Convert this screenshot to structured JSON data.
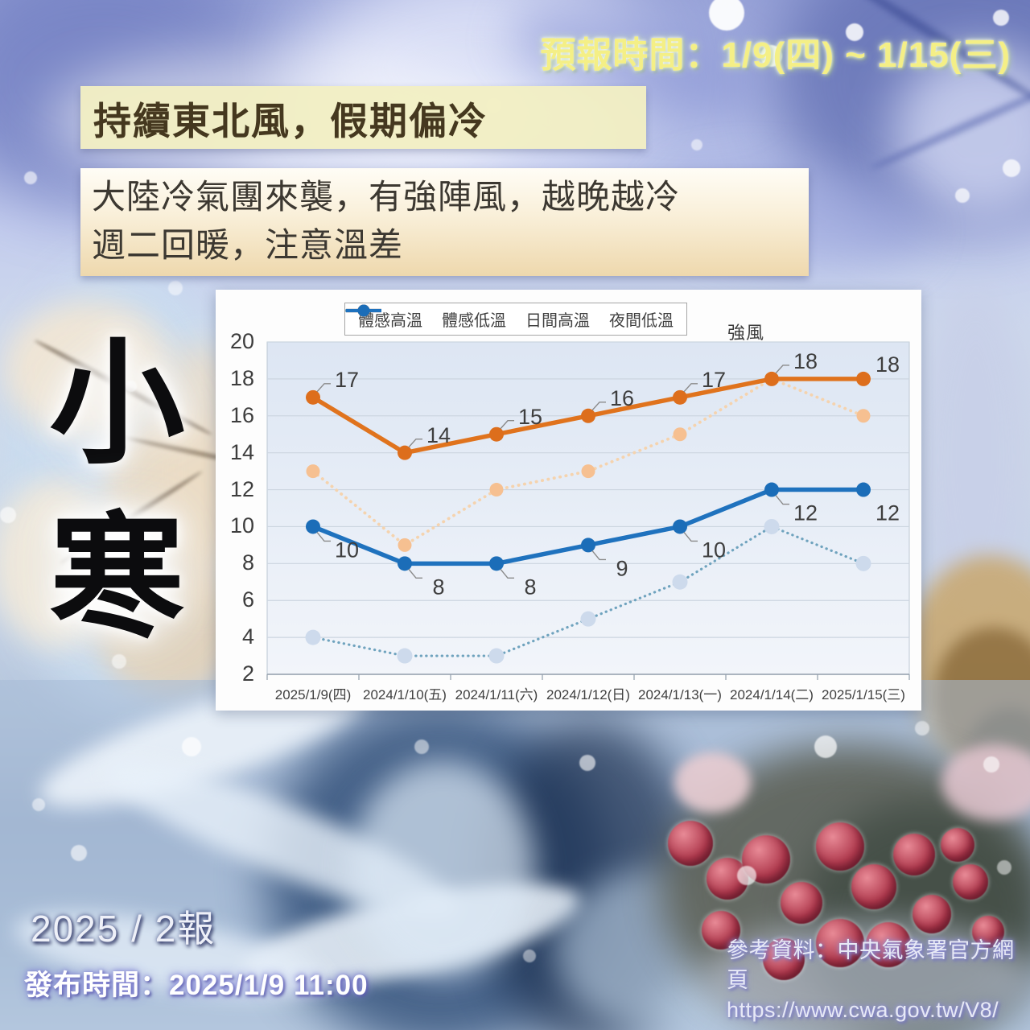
{
  "header": {
    "forecast_time": "預報時間：1/9(四) ~ 1/15(三)",
    "title": "持續東北風，假期偏冷",
    "subtitle_line1": "大陸冷氣團來襲，有強陣風，越晚越冷",
    "subtitle_line2": "週二回暖，注意溫差"
  },
  "solar_term": {
    "char1": "小",
    "char2": "寒"
  },
  "chart_data": {
    "type": "line",
    "categories": [
      "2025/1/9(四)",
      "2024/1/10(五)",
      "2024/1/11(六)",
      "2024/1/12(日)",
      "2024/1/13(一)",
      "2024/1/14(二)",
      "2025/1/15(三)"
    ],
    "series": [
      {
        "name": "體感高溫",
        "values": [
          13,
          9,
          12,
          13,
          15,
          18,
          16
        ],
        "line_color": "#F5D3AE",
        "marker_color": "#F6C091",
        "style": "dotted",
        "labels": false
      },
      {
        "name": "體感低溫",
        "values": [
          4,
          3,
          3,
          5,
          7,
          10,
          8
        ],
        "line_color": "#6FA3BE",
        "marker_color": "#CDDAEC",
        "style": "dotted",
        "labels": false
      },
      {
        "name": "日間高溫",
        "values": [
          17,
          14,
          15,
          16,
          17,
          18,
          18
        ],
        "line_color": "#E0731D",
        "marker_color": "#DD6E1C",
        "style": "solid",
        "labels": true
      },
      {
        "name": "夜間低溫",
        "values": [
          10,
          8,
          8,
          9,
          10,
          12,
          12
        ],
        "line_color": "#1F72BE",
        "marker_color": "#1B6DB8",
        "style": "solid",
        "labels": true
      }
    ],
    "ylim": [
      2,
      20
    ],
    "ytick_step": 2,
    "annotation": "強風",
    "legend_position": "top",
    "grid": true,
    "title": "",
    "xlabel": "",
    "ylabel": ""
  },
  "footer": {
    "report_no": "2025 / 2報",
    "issue_time": "發布時間：2025/1/9 11:00",
    "reference_line1": "參考資料：中央氣象署官方網頁",
    "reference_line2": "https://www.cwa.gov.tw/V8/"
  }
}
